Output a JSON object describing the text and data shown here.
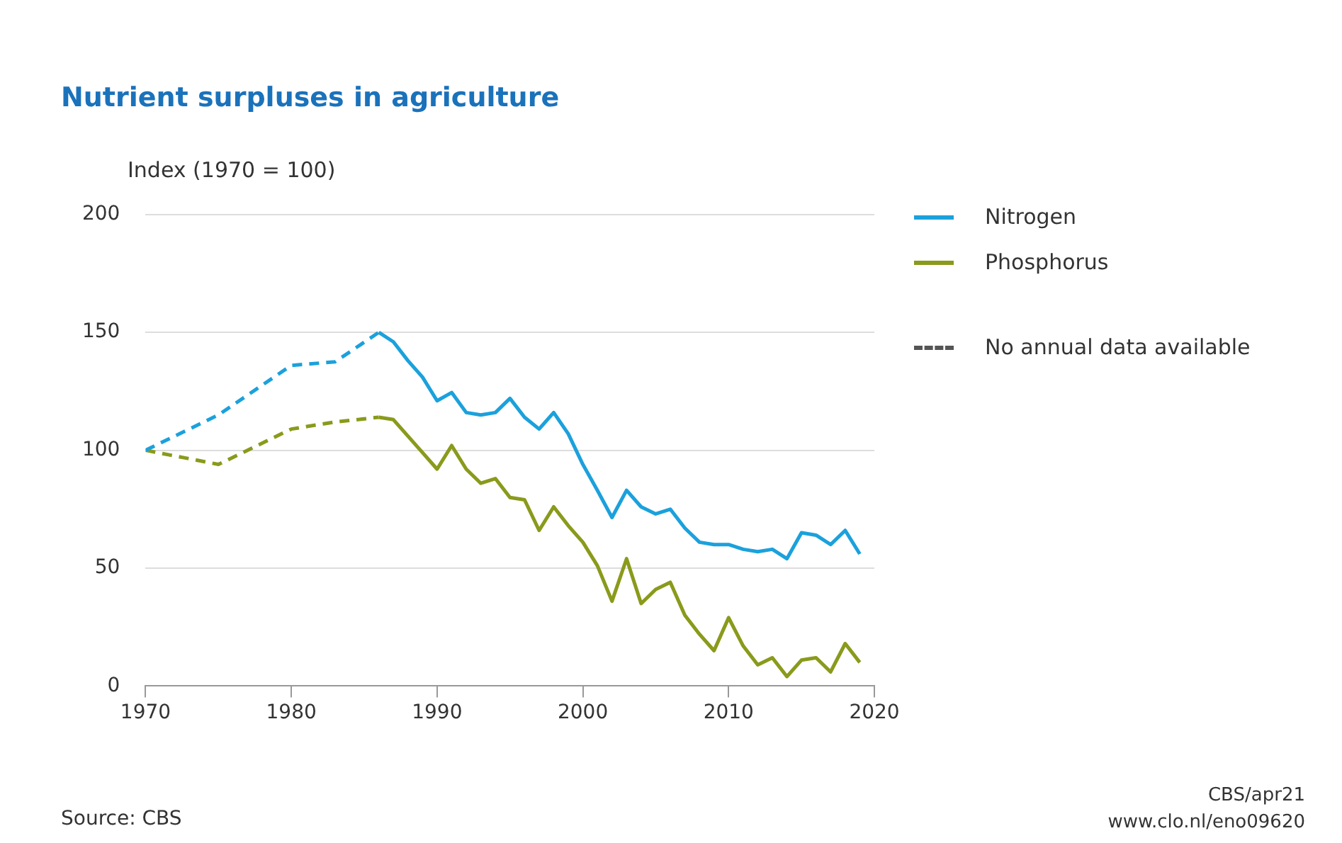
{
  "chart_data": {
    "type": "line",
    "title": "Nutrient surpluses in agriculture",
    "ylabel": "Index (1970 = 100)",
    "xlim": [
      1970,
      2020
    ],
    "xticks": [
      1970,
      1980,
      1990,
      2000,
      2010,
      2020
    ],
    "ylim": [
      0,
      200
    ],
    "yticks": [
      0,
      50,
      100,
      150,
      200
    ],
    "grid": "y",
    "legend": "right",
    "marker": "none",
    "series": [
      {
        "name": "Nitrogen",
        "color": "#1ba1dc",
        "line_style": "solid",
        "x": [
          1986,
          1987,
          1988,
          1989,
          1990,
          1991,
          1992,
          1993,
          1994,
          1995,
          1996,
          1997,
          1998,
          1999,
          2000,
          2001,
          2002,
          2003,
          2004,
          2005,
          2006,
          2007,
          2008,
          2009,
          2010,
          2011,
          2012,
          2013,
          2014,
          2015,
          2016,
          2017,
          2018,
          2019
        ],
        "values": [
          150,
          146,
          138,
          131,
          121,
          124.5,
          116,
          115,
          116,
          122,
          114,
          109,
          116,
          107,
          94,
          83,
          71.5,
          83,
          76,
          73,
          75,
          67,
          61,
          60,
          60,
          58,
          57,
          58,
          54,
          65,
          64,
          60,
          66,
          56
        ]
      },
      {
        "name": "Phosphorus",
        "color": "#8a9a1b",
        "line_style": "solid",
        "x": [
          1986,
          1987,
          1988,
          1989,
          1990,
          1991,
          1992,
          1993,
          1994,
          1995,
          1996,
          1997,
          1998,
          1999,
          2000,
          2001,
          2002,
          2003,
          2004,
          2005,
          2006,
          2007,
          2008,
          2009,
          2010,
          2011,
          2012,
          2013,
          2014,
          2015,
          2016,
          2017,
          2018,
          2019
        ],
        "values": [
          114,
          113,
          106,
          99,
          92,
          102,
          92,
          86,
          88,
          80,
          79,
          66,
          76,
          68,
          61,
          51,
          36,
          54,
          35,
          41,
          44,
          30,
          22,
          15,
          29,
          17,
          9,
          12,
          4,
          11,
          12,
          6,
          18,
          10
        ]
      },
      {
        "color": "#1ba1dc",
        "line_style": "dashed",
        "x": [
          1970,
          1975,
          1980,
          1983,
          1986
        ],
        "values": [
          100,
          115,
          136,
          137.5,
          150
        ]
      },
      {
        "color": "#8a9a1b",
        "line_style": "dashed",
        "x": [
          1970,
          1975,
          1980,
          1983,
          1986
        ],
        "values": [
          100,
          94,
          109,
          112,
          114
        ]
      },
      {
        "name": "No annual data available",
        "color": "#555555",
        "line_style": "dashed"
      }
    ],
    "annotations": [
      "Source: CBS",
      "CBS/apr21",
      "www.clo.nl/eno09620"
    ]
  }
}
